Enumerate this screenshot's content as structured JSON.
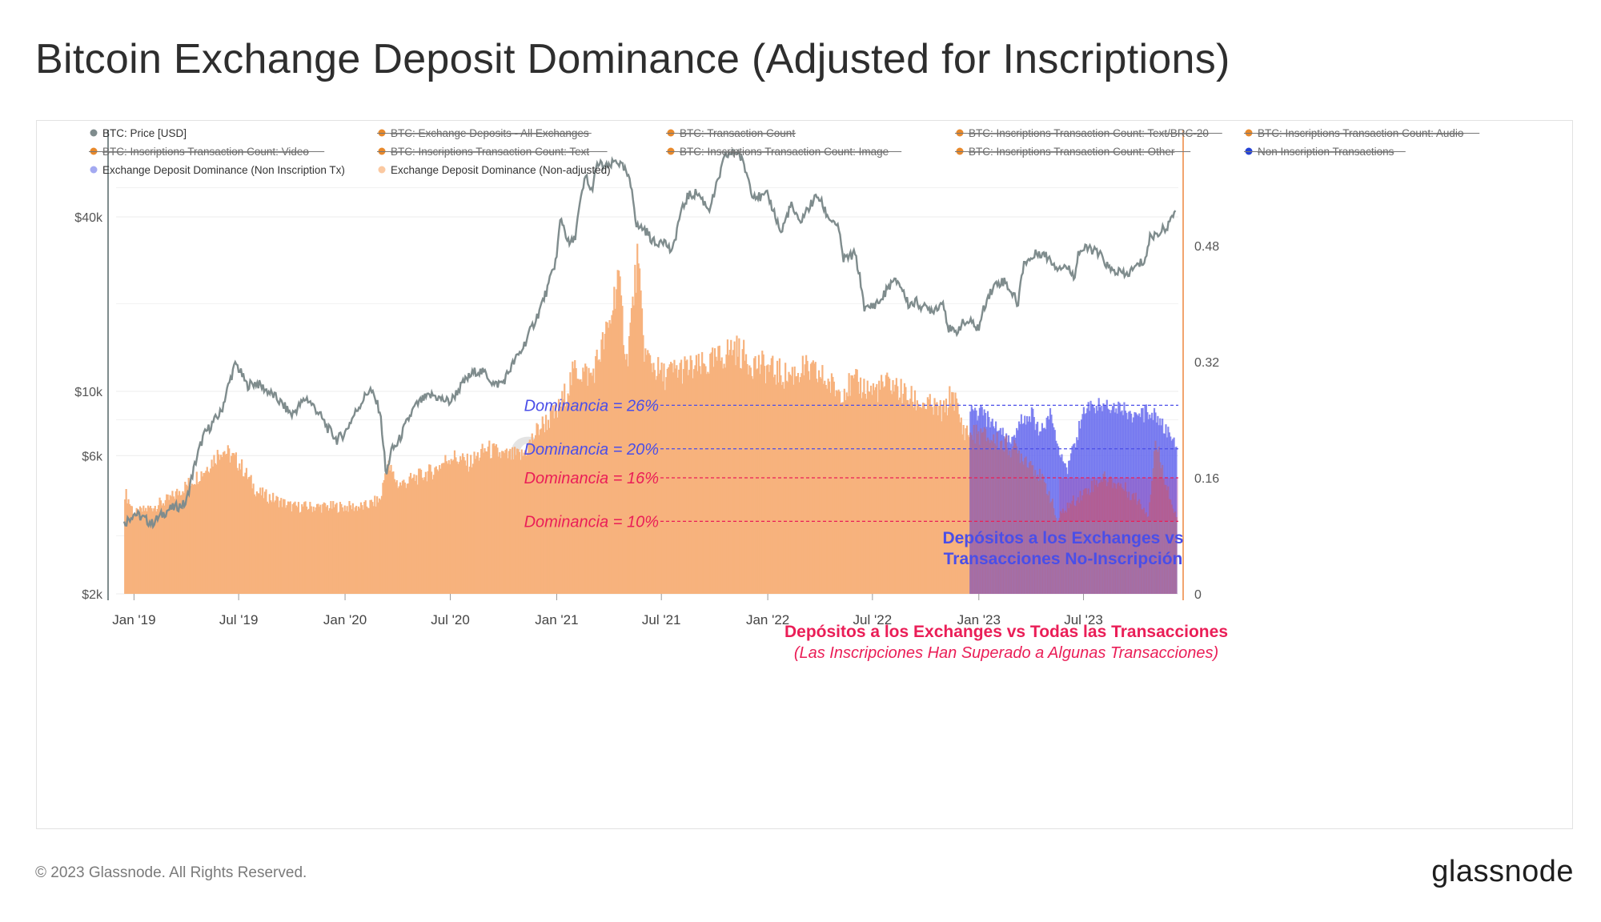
{
  "title": "Bitcoin Exchange Deposit Dominance (Adjusted for Inscriptions)",
  "footer": "© 2023 Glassnode. All Rights Reserved.",
  "brand": "glassnode",
  "watermark": "glassnode",
  "colors": {
    "price": "#7f8c8d",
    "orange_bars": "#f7b27d",
    "blue_bars": "#6e72ee",
    "blue_text": "#4a4ee8",
    "red_text": "#ea1e57",
    "right_axis": "#f2a46e",
    "legend_orange": "#e8892b",
    "legend_blue": "#2442d6",
    "legend_lightblue": "#a3a9f1",
    "legend_peach": "#fbc9a1"
  },
  "legend": [
    {
      "label": "BTC: Price [USD]",
      "color": "#7f8c8d",
      "struck": false,
      "icon": "dot"
    },
    {
      "label": "BTC: Exchange Deposits - All Exchanges",
      "color": "#e8892b",
      "struck": true,
      "icon": "dot"
    },
    {
      "label": "BTC: Transaction Count",
      "color": "#e8892b",
      "struck": true,
      "icon": "dot"
    },
    {
      "label": "BTC: Inscriptions Transaction Count: Text/BRC-20",
      "color": "#e8892b",
      "struck": true,
      "icon": "dot"
    },
    {
      "label": "BTC: Inscriptions Transaction Count: Audio",
      "color": "#e8892b",
      "struck": true,
      "icon": "dot"
    },
    {
      "label": "BTC: Inscriptions Transaction Count: Video",
      "color": "#e8892b",
      "struck": true,
      "icon": "dot"
    },
    {
      "label": "BTC: Inscriptions Transaction Count: Text",
      "color": "#e8892b",
      "struck": true,
      "icon": "dot"
    },
    {
      "label": "BTC: Inscriptions Transaction Count: Image",
      "color": "#e8892b",
      "struck": true,
      "icon": "dot"
    },
    {
      "label": "BTC: Inscriptions Transaction Count: Other",
      "color": "#e8892b",
      "struck": true,
      "icon": "dot"
    },
    {
      "label": "Non Inscription Transactions",
      "color": "#2442d6",
      "struck": true,
      "icon": "dot"
    },
    {
      "label": "Exchange Deposit Dominance (Non Inscription Tx)",
      "color": "#a3a9f1",
      "struck": false,
      "icon": "dot"
    },
    {
      "label": "Exchange Deposit Dominance (Non-adjusted)",
      "color": "#fbc9a1",
      "struck": false,
      "icon": "dot"
    }
  ],
  "annotations": {
    "dom26": "Dominancia = 26%",
    "dom20": "Dominancia = 20%",
    "dom16": "Dominancia = 16%",
    "dom10": "Dominancia = 10%",
    "blue_title_1": "Depósitos a los Exchanges vs",
    "blue_title_2": "Transacciones No-Inscripción",
    "red_title": "Depósitos a los Exchanges vs Todas las Transacciones",
    "red_sub": "(Las Inscripciones Han Superado a Algunas Transacciones)"
  },
  "chart_data": {
    "type": "line",
    "x_ticks": [
      "Jan '19",
      "Jul '19",
      "Jan '20",
      "Jul '20",
      "Jan '21",
      "Jul '21",
      "Jan '22",
      "Jul '22",
      "Jan '23",
      "Jul '23"
    ],
    "y_left": {
      "label": "",
      "scale": "log",
      "ticks": [
        "$2k",
        "$6k",
        "$10k",
        "$40k"
      ],
      "range": [
        2000,
        80000
      ]
    },
    "y_right": {
      "label": "",
      "scale": "linear",
      "ticks": [
        "0",
        "0.16",
        "0.32",
        "0.48"
      ],
      "range": [
        0,
        0.64
      ]
    },
    "series": [
      {
        "name": "BTC: Price [USD]",
        "axis": "left",
        "kind": "line",
        "x": [
          "2018-12-15",
          "2019-01-01",
          "2019-02-01",
          "2019-03-01",
          "2019-04-01",
          "2019-05-01",
          "2019-06-01",
          "2019-06-26",
          "2019-07-15",
          "2019-08-01",
          "2019-09-01",
          "2019-10-01",
          "2019-10-26",
          "2019-11-15",
          "2019-12-01",
          "2019-12-18",
          "2020-01-01",
          "2020-02-13",
          "2020-03-01",
          "2020-03-12",
          "2020-03-20",
          "2020-04-01",
          "2020-04-30",
          "2020-05-15",
          "2020-06-01",
          "2020-06-15",
          "2020-07-01",
          "2020-07-27",
          "2020-08-15",
          "2020-09-01",
          "2020-09-15",
          "2020-10-01",
          "2020-10-21",
          "2020-11-01",
          "2020-11-15",
          "2020-12-01",
          "2020-12-17",
          "2021-01-01",
          "2021-01-08",
          "2021-01-22",
          "2021-02-01",
          "2021-02-21",
          "2021-03-01",
          "2021-03-13",
          "2021-04-01",
          "2021-04-14",
          "2021-05-01",
          "2021-05-12",
          "2021-05-19",
          "2021-06-01",
          "2021-06-22",
          "2021-07-01",
          "2021-07-20",
          "2021-08-01",
          "2021-08-15",
          "2021-09-01",
          "2021-09-21",
          "2021-10-01",
          "2021-10-20",
          "2021-11-10",
          "2021-11-25",
          "2021-12-05",
          "2021-12-20",
          "2022-01-01",
          "2022-01-24",
          "2022-02-10",
          "2022-02-24",
          "2022-03-28",
          "2022-04-15",
          "2022-05-01",
          "2022-05-12",
          "2022-06-01",
          "2022-06-18",
          "2022-07-01",
          "2022-07-15",
          "2022-08-01",
          "2022-08-15",
          "2022-09-01",
          "2022-09-15",
          "2022-10-01",
          "2022-10-15",
          "2022-11-01",
          "2022-11-09",
          "2022-11-21",
          "2022-12-01",
          "2022-12-15",
          "2023-01-01",
          "2023-01-15",
          "2023-02-01",
          "2023-02-15",
          "2023-03-10",
          "2023-03-20",
          "2023-04-01",
          "2023-04-14",
          "2023-05-01",
          "2023-05-15",
          "2023-06-01",
          "2023-06-15",
          "2023-06-23",
          "2023-07-13",
          "2023-08-01",
          "2023-08-17",
          "2023-09-01",
          "2023-09-11",
          "2023-10-01",
          "2023-10-16",
          "2023-10-24",
          "2023-11-01",
          "2023-11-15",
          "2023-12-01",
          "2023-12-07"
        ],
        "values": [
          3500,
          3800,
          3500,
          3900,
          4100,
          7000,
          8500,
          12500,
          10500,
          10700,
          9600,
          8300,
          9500,
          8500,
          7500,
          6800,
          7200,
          10200,
          8600,
          5000,
          6200,
          6600,
          8800,
          9400,
          9700,
          9400,
          9200,
          10900,
          11800,
          11500,
          10500,
          10800,
          12800,
          13800,
          15900,
          18700,
          22800,
          29000,
          40000,
          32000,
          33500,
          56000,
          48000,
          61000,
          59000,
          63000,
          57000,
          49000,
          37000,
          36500,
          31800,
          34000,
          30000,
          39500,
          47000,
          48500,
          42500,
          48000,
          65000,
          67500,
          57000,
          48500,
          46500,
          47500,
          35000,
          44000,
          38000,
          47500,
          40000,
          37700,
          28500,
          29800,
          19000,
          19800,
          20500,
          23500,
          24000,
          20000,
          20300,
          19300,
          19200,
          20400,
          16500,
          15800,
          17000,
          17400,
          16500,
          21000,
          23700,
          24000,
          20000,
          28000,
          28500,
          30400,
          29000,
          27000,
          27000,
          25000,
          30500,
          31200,
          29200,
          26000,
          25900,
          25000,
          27000,
          28500,
          34000,
          34700,
          36000,
          39000,
          43000
        ]
      },
      {
        "name": "Exchange Deposit Dominance (Non-adjusted)",
        "axis": "right",
        "kind": "bars",
        "x": [
          "2018-12-15",
          "2019-01-01",
          "2019-02-01",
          "2019-03-01",
          "2019-04-01",
          "2019-05-01",
          "2019-06-01",
          "2019-07-01",
          "2019-08-01",
          "2019-09-01",
          "2019-10-01",
          "2019-11-01",
          "2019-12-01",
          "2020-01-01",
          "2020-02-01",
          "2020-03-01",
          "2020-03-12",
          "2020-04-01",
          "2020-05-01",
          "2020-06-01",
          "2020-07-01",
          "2020-08-01",
          "2020-09-01",
          "2020-10-01",
          "2020-11-01",
          "2020-12-01",
          "2021-01-01",
          "2021-02-01",
          "2021-03-01",
          "2021-04-01",
          "2021-04-15",
          "2021-05-01",
          "2021-05-19",
          "2021-06-01",
          "2021-07-01",
          "2021-08-01",
          "2021-09-01",
          "2021-10-01",
          "2021-11-01",
          "2021-12-01",
          "2022-01-01",
          "2022-02-01",
          "2022-03-01",
          "2022-04-01",
          "2022-05-01",
          "2022-06-01",
          "2022-07-01",
          "2022-08-01",
          "2022-09-01",
          "2022-10-01",
          "2022-11-01",
          "2022-11-15",
          "2022-12-01",
          "2022-12-15",
          "2023-01-01",
          "2023-02-01",
          "2023-03-01",
          "2023-04-01",
          "2023-05-01",
          "2023-05-15",
          "2023-06-01",
          "2023-07-01",
          "2023-08-01",
          "2023-09-01",
          "2023-10-01",
          "2023-10-20",
          "2023-11-01",
          "2023-12-07"
        ],
        "values": [
          0.14,
          0.11,
          0.12,
          0.13,
          0.15,
          0.17,
          0.2,
          0.18,
          0.14,
          0.13,
          0.12,
          0.12,
          0.12,
          0.12,
          0.12,
          0.13,
          0.18,
          0.15,
          0.16,
          0.17,
          0.19,
          0.18,
          0.2,
          0.19,
          0.19,
          0.23,
          0.25,
          0.31,
          0.3,
          0.37,
          0.44,
          0.32,
          0.46,
          0.33,
          0.3,
          0.31,
          0.31,
          0.32,
          0.34,
          0.32,
          0.31,
          0.3,
          0.31,
          0.3,
          0.28,
          0.29,
          0.28,
          0.29,
          0.27,
          0.26,
          0.25,
          0.28,
          0.23,
          0.22,
          0.22,
          0.21,
          0.2,
          0.18,
          0.14,
          0.1,
          0.12,
          0.14,
          0.16,
          0.15,
          0.13,
          0.11,
          0.21,
          0.1
        ]
      },
      {
        "name": "Exchange Deposit Dominance (Non Inscription Tx)",
        "axis": "right",
        "kind": "bars",
        "x": [
          "2022-12-15",
          "2023-01-01",
          "2023-01-15",
          "2023-02-01",
          "2023-02-15",
          "2023-03-01",
          "2023-03-15",
          "2023-04-01",
          "2023-04-15",
          "2023-05-01",
          "2023-05-15",
          "2023-06-01",
          "2023-06-15",
          "2023-07-01",
          "2023-07-15",
          "2023-08-01",
          "2023-08-15",
          "2023-09-01",
          "2023-09-15",
          "2023-10-01",
          "2023-10-15",
          "2023-11-01",
          "2023-11-15",
          "2023-12-01",
          "2023-12-07"
        ],
        "values": [
          0.25,
          0.25,
          0.24,
          0.23,
          0.22,
          0.21,
          0.24,
          0.25,
          0.22,
          0.25,
          0.21,
          0.17,
          0.21,
          0.25,
          0.26,
          0.26,
          0.26,
          0.26,
          0.25,
          0.24,
          0.25,
          0.25,
          0.23,
          0.21,
          0.21
        ]
      }
    ],
    "reference_lines": [
      {
        "value": 0.26,
        "label": "Dominancia = 26%",
        "color": "#4a4ee8"
      },
      {
        "value": 0.2,
        "label": "Dominancia = 20%",
        "color": "#4a4ee8"
      },
      {
        "value": 0.16,
        "label": "Dominancia = 16%",
        "color": "#ea1e57"
      },
      {
        "value": 0.1,
        "label": "Dominancia = 10%",
        "color": "#ea1e57"
      }
    ]
  }
}
